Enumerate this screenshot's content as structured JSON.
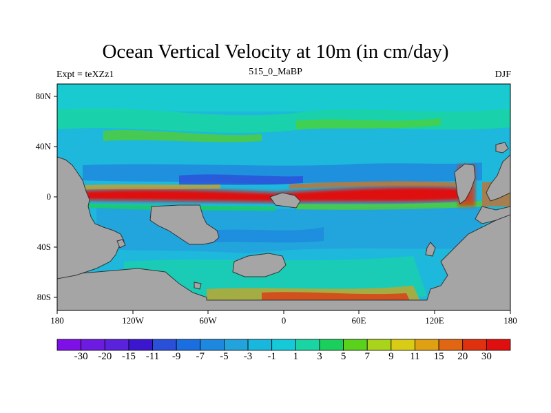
{
  "title": "Ocean Vertical Velocity at 10m (in cm/day)",
  "subtitle_left": "Expt = teXZz1",
  "subtitle_center": "515_0_MaBP",
  "subtitle_right": "DJF",
  "lat_ticks": [
    "80N",
    "40N",
    "0",
    "40S",
    "80S"
  ],
  "lon_ticks": [
    "180",
    "120W",
    "60W",
    "0",
    "60E",
    "120E",
    "180"
  ],
  "colorbar": {
    "labels": [
      "-30",
      "-20",
      "-15",
      "-11",
      "-9",
      "-7",
      "-5",
      "-3",
      "-1",
      "1",
      "3",
      "5",
      "7",
      "9",
      "11",
      "15",
      "20",
      "30"
    ],
    "colors": [
      "#7e0fe6",
      "#6d1be0",
      "#5a22dd",
      "#3c16cf",
      "#2a4fd8",
      "#1a6ee0",
      "#1e88de",
      "#23a3dc",
      "#19b6dd",
      "#16c9d8",
      "#1ad4a4",
      "#1bcf5c",
      "#5ad11a",
      "#a9d41b",
      "#d8cc16",
      "#e0a013",
      "#e06614",
      "#e0310f",
      "#e00f0f"
    ]
  },
  "land_color": "#a5a5a5",
  "ocean_background_color": "#1db8dc"
}
